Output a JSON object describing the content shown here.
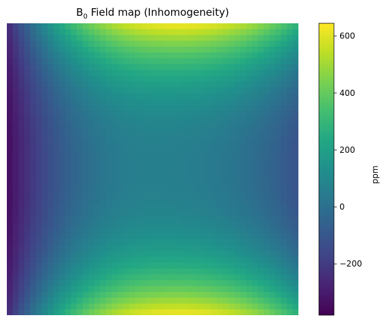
{
  "chart_data": {
    "type": "heatmap",
    "title_main": "B",
    "title_sub": "0",
    "title_rest": " Field map (Inhomogeneity)",
    "colormap": "viridis",
    "grid": false,
    "axes_visible": false,
    "colorbar": {
      "label": "ppm",
      "range": [
        -380,
        645
      ],
      "ticks": [
        {
          "value": 600,
          "label": "600"
        },
        {
          "value": 400,
          "label": "400"
        },
        {
          "value": 200,
          "label": "200"
        },
        {
          "value": 0,
          "label": "0"
        },
        {
          "value": -200,
          "label": "−200"
        }
      ]
    },
    "field_summary": {
      "left_edge": -350,
      "center": 60,
      "right_edge_mid": -120,
      "top_center": 640,
      "bottom_center": 640,
      "grid_cells": 50
    }
  }
}
